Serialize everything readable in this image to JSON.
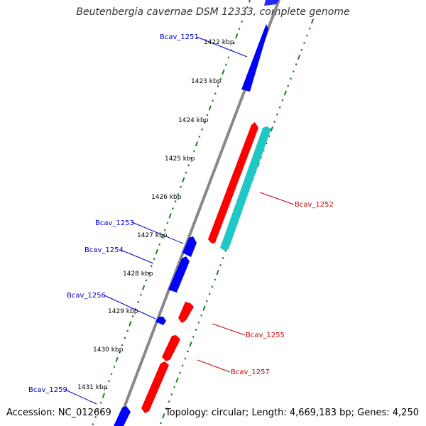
{
  "title": "Beutenbergia cavernae DSM 12333, complete genome",
  "accession": "Accession: NC_012669",
  "topology": "Topology: circular; Length: 4,669,183 bp; Genes: 4,250",
  "colors": {
    "forward": "#0000ff",
    "reverse": "#ff0000",
    "rna": "#1fc7c7",
    "backbone": "#888888",
    "ticks": "#1e7f1e",
    "label_forward": "#0000cc",
    "label_reverse": "#cc0000"
  },
  "kbp_labels": [
    "1422 kbp",
    "1423 kbp",
    "1424 kbp",
    "1425 kbp",
    "1426 kbp",
    "1427 kbp",
    "1428 kbp",
    "1429 kbp",
    "1430 kbp",
    "1431 kbp"
  ],
  "gene_labels": [
    "Bcav_1251",
    "Bcav_1252",
    "Bcav_1253",
    "Bcav_1254",
    "Bcav_1255",
    "Bcav_1256",
    "Bcav_1257",
    "Bcav_1259"
  ]
}
